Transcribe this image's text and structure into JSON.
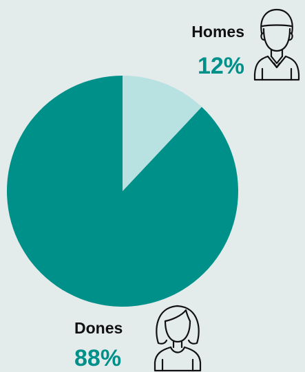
{
  "colors": {
    "background": "#e3ebeb",
    "dones": "#00908a",
    "homes": "#b8e1e1",
    "text_dark": "#111111"
  },
  "icons": {
    "homes": "man-avatar-icon",
    "dones": "woman-avatar-icon"
  },
  "chart_data": {
    "type": "pie",
    "slices": [
      {
        "label": "Homes",
        "value": 12,
        "display": "12%",
        "color": "#b8e1e1"
      },
      {
        "label": "Dones",
        "value": 88,
        "display": "88%",
        "color": "#00908a"
      }
    ],
    "start": "top",
    "direction": "clockwise"
  }
}
